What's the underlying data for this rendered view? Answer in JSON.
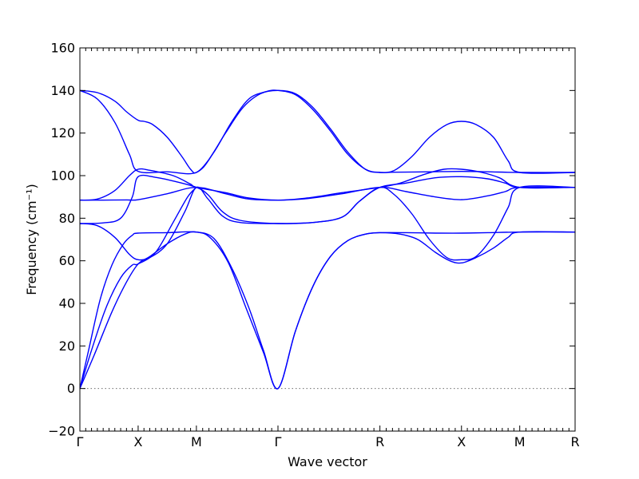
{
  "chart_data": {
    "type": "line",
    "title": "",
    "xlabel": "Wave vector",
    "ylabel": "Frequency (cm⁻¹)",
    "ylim": [
      -20,
      160
    ],
    "yticks": [
      -20,
      0,
      20,
      40,
      60,
      80,
      100,
      120,
      140,
      160
    ],
    "ytick_labels": [
      "−20",
      "0",
      "20",
      "40",
      "60",
      "80",
      "100",
      "120",
      "140",
      "160"
    ],
    "xlim": [
      0,
      8.5
    ],
    "xticks": [
      0,
      1,
      2,
      3.4,
      5.15,
      6.55,
      7.55,
      8.5
    ],
    "xtick_labels": [
      "Γ",
      "X",
      "M",
      "Γ",
      "R",
      "X",
      "M",
      "R"
    ],
    "zero_line": true,
    "grid": false,
    "line_color": "#0000ff",
    "series": [
      {
        "points": [
          [
            0,
            140
          ],
          [
            0.3,
            139
          ],
          [
            0.6,
            135
          ],
          [
            0.8,
            130
          ],
          [
            1,
            126
          ],
          [
            1.1,
            125.5
          ],
          [
            1.25,
            124
          ],
          [
            1.5,
            118
          ],
          [
            1.75,
            109
          ],
          [
            1.9,
            103
          ],
          [
            2,
            101.5
          ],
          [
            2.2,
            107
          ],
          [
            2.5,
            120
          ],
          [
            2.8,
            132
          ],
          [
            3.1,
            138.5
          ],
          [
            3.4,
            140
          ],
          [
            3.7,
            138.5
          ],
          [
            4,
            132
          ],
          [
            4.3,
            122
          ],
          [
            4.6,
            111
          ],
          [
            4.9,
            103
          ],
          [
            5.15,
            101.5
          ],
          [
            5.4,
            102.5
          ],
          [
            5.7,
            109
          ],
          [
            6.0,
            118
          ],
          [
            6.3,
            124
          ],
          [
            6.55,
            125.5
          ],
          [
            6.8,
            124
          ],
          [
            7.1,
            118
          ],
          [
            7.35,
            107
          ],
          [
            7.55,
            101.5
          ],
          [
            8.5,
            101.5
          ]
        ]
      },
      {
        "points": [
          [
            0,
            140
          ],
          [
            0.3,
            136
          ],
          [
            0.6,
            125
          ],
          [
            0.85,
            110
          ],
          [
            1,
            102
          ],
          [
            1.5,
            101.8
          ],
          [
            2,
            101.5
          ],
          [
            2.3,
            111
          ],
          [
            2.6,
            125
          ],
          [
            2.9,
            136
          ],
          [
            3.2,
            139.5
          ],
          [
            3.4,
            140
          ],
          [
            3.7,
            138
          ],
          [
            4,
            131
          ],
          [
            4.3,
            121
          ],
          [
            4.6,
            110
          ],
          [
            4.9,
            103
          ],
          [
            5.15,
            101.5
          ],
          [
            5.4,
            101.6
          ],
          [
            6.0,
            101.8
          ],
          [
            6.55,
            102
          ],
          [
            7.0,
            101.8
          ],
          [
            7.55,
            101.5
          ],
          [
            8.5,
            101.5
          ]
        ]
      },
      {
        "points": [
          [
            0,
            88.5
          ],
          [
            0.3,
            89
          ],
          [
            0.6,
            93
          ],
          [
            0.85,
            100
          ],
          [
            1,
            103
          ],
          [
            1.2,
            102.5
          ],
          [
            1.6,
            100
          ],
          [
            1.9,
            96
          ],
          [
            2,
            94.5
          ],
          [
            2.5,
            92
          ],
          [
            2.9,
            89.5
          ],
          [
            3.4,
            88.5
          ],
          [
            3.9,
            89.5
          ],
          [
            4.5,
            92
          ],
          [
            5.15,
            94.5
          ],
          [
            5.5,
            96.5
          ],
          [
            5.9,
            100.5
          ],
          [
            6.25,
            103
          ],
          [
            6.55,
            103
          ],
          [
            6.9,
            101.5
          ],
          [
            7.2,
            99
          ],
          [
            7.55,
            94.5
          ],
          [
            8.5,
            94.5
          ]
        ]
      },
      {
        "points": [
          [
            0,
            88.5
          ],
          [
            0.4,
            88.5
          ],
          [
            0.8,
            88.6
          ],
          [
            1,
            88.7
          ],
          [
            1.5,
            91.5
          ],
          [
            2,
            94.5
          ],
          [
            2.5,
            91.5
          ],
          [
            2.9,
            89
          ],
          [
            3.4,
            88.5
          ],
          [
            3.9,
            89.2
          ],
          [
            4.5,
            91.5
          ],
          [
            5.15,
            94.5
          ],
          [
            5.6,
            92.5
          ],
          [
            6.1,
            90
          ],
          [
            6.55,
            88.7
          ],
          [
            7.0,
            90.5
          ],
          [
            7.3,
            92.5
          ],
          [
            7.55,
            94.5
          ],
          [
            8.5,
            94.5
          ]
        ]
      },
      {
        "points": [
          [
            0,
            77.5
          ],
          [
            0.4,
            77.8
          ],
          [
            0.7,
            80
          ],
          [
            0.9,
            90
          ],
          [
            1,
            99.5
          ],
          [
            1.3,
            99.2
          ],
          [
            1.6,
            97.5
          ],
          [
            2,
            94.5
          ],
          [
            2.2,
            91
          ],
          [
            2.45,
            83
          ],
          [
            2.75,
            79
          ],
          [
            3.4,
            77.5
          ],
          [
            4,
            78
          ],
          [
            4.5,
            80.5
          ],
          [
            4.8,
            88
          ],
          [
            5.15,
            94.5
          ],
          [
            5.6,
            96.5
          ],
          [
            6.1,
            99
          ],
          [
            6.55,
            99.5
          ],
          [
            7.0,
            98.5
          ],
          [
            7.3,
            96.5
          ],
          [
            7.55,
            94.5
          ],
          [
            8.5,
            94.5
          ]
        ]
      },
      {
        "points": [
          [
            0,
            77.5
          ],
          [
            0.3,
            76.5
          ],
          [
            0.6,
            71
          ],
          [
            0.85,
            63
          ],
          [
            1,
            60.5
          ],
          [
            1.2,
            61.5
          ],
          [
            1.5,
            68
          ],
          [
            1.8,
            83
          ],
          [
            2,
            94.5
          ],
          [
            2.2,
            89
          ],
          [
            2.45,
            81
          ],
          [
            2.75,
            78
          ],
          [
            3.4,
            77.5
          ],
          [
            4,
            78
          ],
          [
            4.5,
            80.5
          ],
          [
            4.8,
            88
          ],
          [
            5.15,
            94.5
          ],
          [
            5.4,
            91
          ],
          [
            5.7,
            82
          ],
          [
            6.0,
            70
          ],
          [
            6.3,
            61.5
          ],
          [
            6.55,
            60.5
          ],
          [
            6.8,
            62
          ],
          [
            7.1,
            72
          ],
          [
            7.35,
            85
          ],
          [
            7.55,
            94.5
          ],
          [
            8.5,
            94.5
          ]
        ]
      },
      {
        "points": [
          [
            0,
            0
          ],
          [
            0.15,
            18
          ],
          [
            0.35,
            42
          ],
          [
            0.55,
            58
          ],
          [
            0.75,
            68
          ],
          [
            0.9,
            72
          ],
          [
            1,
            73
          ],
          [
            1.5,
            73.2
          ],
          [
            2,
            73.5
          ],
          [
            2.25,
            70.5
          ],
          [
            2.55,
            59
          ],
          [
            2.85,
            38
          ],
          [
            3.15,
            17
          ],
          [
            3.4,
            0
          ],
          [
            3.7,
            27
          ],
          [
            4.0,
            48
          ],
          [
            4.3,
            62
          ],
          [
            4.6,
            69.5
          ],
          [
            4.9,
            72.5
          ],
          [
            5.15,
            73.2
          ],
          [
            5.6,
            73.2
          ],
          [
            6.1,
            73
          ],
          [
            6.55,
            73
          ],
          [
            7.0,
            73.2
          ],
          [
            7.55,
            73.5
          ],
          [
            8.5,
            73.5
          ]
        ]
      },
      {
        "points": [
          [
            0,
            0
          ],
          [
            0.25,
            16
          ],
          [
            0.55,
            36
          ],
          [
            0.8,
            50
          ],
          [
            1,
            58.5
          ],
          [
            1.2,
            62
          ],
          [
            1.5,
            68
          ],
          [
            1.8,
            72.5
          ],
          [
            2,
            73.5
          ],
          [
            2.3,
            70.5
          ],
          [
            2.6,
            57
          ],
          [
            2.9,
            38
          ],
          [
            3.15,
            18
          ],
          [
            3.4,
            0
          ],
          [
            3.7,
            27
          ],
          [
            4.0,
            48
          ],
          [
            4.3,
            62
          ],
          [
            4.6,
            69.5
          ],
          [
            4.9,
            72.5
          ],
          [
            5.15,
            73.2
          ],
          [
            5.5,
            72.5
          ],
          [
            5.8,
            70
          ],
          [
            6.1,
            64
          ],
          [
            6.35,
            60
          ],
          [
            6.55,
            59
          ],
          [
            6.8,
            61.5
          ],
          [
            7.1,
            66
          ],
          [
            7.35,
            71
          ],
          [
            7.55,
            73.5
          ],
          [
            8.5,
            73.5
          ]
        ]
      },
      {
        "points": [
          [
            0,
            0
          ],
          [
            0.2,
            18
          ],
          [
            0.45,
            38
          ],
          [
            0.7,
            52
          ],
          [
            0.9,
            58
          ],
          [
            1,
            58.5
          ],
          [
            1.3,
            64
          ],
          [
            1.6,
            78
          ],
          [
            1.85,
            90
          ],
          [
            2,
            94.5
          ]
        ]
      }
    ]
  }
}
